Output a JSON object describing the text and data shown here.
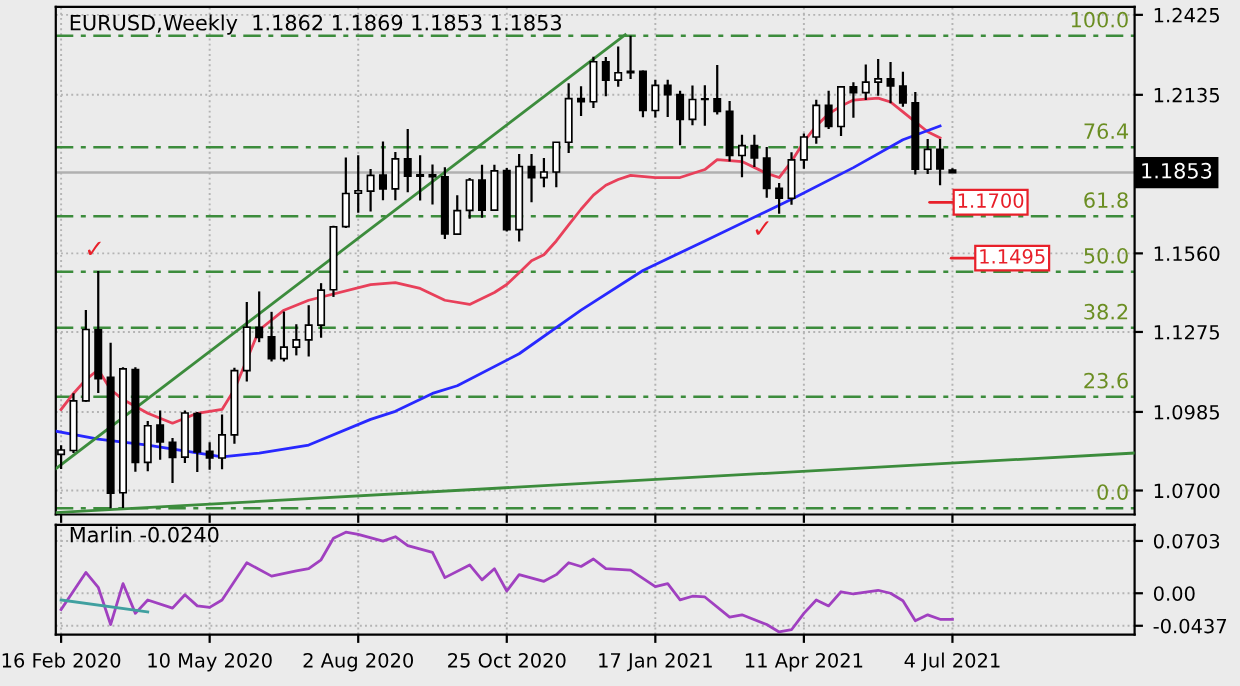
{
  "chart_data": [
    {
      "type": "candlestick",
      "title": "EURUSD,Weekly  1.1862 1.1869 1.1853 1.1853",
      "x": [
        "2020-02-16",
        "2020-02-23",
        "2020-03-01",
        "2020-03-08",
        "2020-03-15",
        "2020-03-22",
        "2020-03-29",
        "2020-04-05",
        "2020-04-12",
        "2020-04-19",
        "2020-04-26",
        "2020-05-03",
        "2020-05-10",
        "2020-05-17",
        "2020-05-24",
        "2020-05-31",
        "2020-06-07",
        "2020-06-14",
        "2020-06-21",
        "2020-06-28",
        "2020-07-05",
        "2020-07-12",
        "2020-07-19",
        "2020-07-26",
        "2020-08-02",
        "2020-08-09",
        "2020-08-16",
        "2020-08-23",
        "2020-08-30",
        "2020-09-06",
        "2020-09-13",
        "2020-09-20",
        "2020-09-27",
        "2020-10-04",
        "2020-10-11",
        "2020-10-18",
        "2020-10-25",
        "2020-11-01",
        "2020-11-08",
        "2020-11-15",
        "2020-11-22",
        "2020-11-29",
        "2020-12-06",
        "2020-12-13",
        "2020-12-20",
        "2020-12-27",
        "2021-01-03",
        "2021-01-10",
        "2021-01-17",
        "2021-01-24",
        "2021-01-31",
        "2021-02-07",
        "2021-02-14",
        "2021-02-21",
        "2021-02-28",
        "2021-03-07",
        "2021-03-14",
        "2021-03-21",
        "2021-03-28",
        "2021-04-04",
        "2021-04-11",
        "2021-04-18",
        "2021-04-25",
        "2021-05-02",
        "2021-05-09",
        "2021-05-16",
        "2021-05-23",
        "2021-05-30",
        "2021-06-06",
        "2021-06-13",
        "2021-06-20",
        "2021-06-27",
        "2021-07-04"
      ],
      "ohlc": [
        [
          1.0831,
          1.0864,
          1.0778,
          1.0847
        ],
        [
          1.0845,
          1.1053,
          1.0836,
          1.1025
        ],
        [
          1.1025,
          1.1355,
          1.1022,
          1.1284
        ],
        [
          1.1283,
          1.1496,
          1.1054,
          1.1106
        ],
        [
          1.111,
          1.1236,
          1.0636,
          1.069
        ],
        [
          1.0692,
          1.1147,
          1.0637,
          1.1141
        ],
        [
          1.1139,
          1.1147,
          1.0768,
          1.0802
        ],
        [
          1.0802,
          1.0952,
          1.077,
          1.0935
        ],
        [
          1.0937,
          1.099,
          1.0812,
          1.0876
        ],
        [
          1.0875,
          1.089,
          1.0727,
          1.082
        ],
        [
          1.0821,
          1.099,
          1.08,
          1.0981
        ],
        [
          1.0979,
          1.0985,
          1.0767,
          1.084
        ],
        [
          1.0842,
          1.0875,
          1.0775,
          1.0818
        ],
        [
          1.0818,
          1.0976,
          1.0777,
          1.0902
        ],
        [
          1.0902,
          1.1145,
          1.087,
          1.1135
        ],
        [
          1.1135,
          1.1384,
          1.1095,
          1.1292
        ],
        [
          1.1292,
          1.1422,
          1.1238,
          1.1255
        ],
        [
          1.1257,
          1.1348,
          1.1168,
          1.1178
        ],
        [
          1.1178,
          1.1349,
          1.1168,
          1.122
        ],
        [
          1.122,
          1.1303,
          1.119,
          1.1246
        ],
        [
          1.1246,
          1.1372,
          1.1186,
          1.13
        ],
        [
          1.13,
          1.1452,
          1.1254,
          1.1427
        ],
        [
          1.1428,
          1.166,
          1.1402,
          1.1656
        ],
        [
          1.1657,
          1.1908,
          1.1652,
          1.1777
        ],
        [
          1.1778,
          1.1916,
          1.1707,
          1.1787
        ],
        [
          1.1786,
          1.1866,
          1.1712,
          1.1843
        ],
        [
          1.1844,
          1.1966,
          1.1753,
          1.1794
        ],
        [
          1.1794,
          1.1928,
          1.1753,
          1.1903
        ],
        [
          1.1903,
          1.2011,
          1.1782,
          1.184
        ],
        [
          1.184,
          1.1916,
          1.1752,
          1.1845
        ],
        [
          1.1845,
          1.1882,
          1.1737,
          1.1838
        ],
        [
          1.1838,
          1.1872,
          1.1612,
          1.1631
        ],
        [
          1.163,
          1.1771,
          1.1627,
          1.1715
        ],
        [
          1.1716,
          1.1833,
          1.1686,
          1.1826
        ],
        [
          1.1826,
          1.1881,
          1.1689,
          1.1717
        ],
        [
          1.1717,
          1.1881,
          1.1717,
          1.1859
        ],
        [
          1.186,
          1.187,
          1.1639,
          1.1646
        ],
        [
          1.1646,
          1.192,
          1.1603,
          1.1875
        ],
        [
          1.1875,
          1.192,
          1.1745,
          1.1835
        ],
        [
          1.1835,
          1.1906,
          1.18,
          1.1855
        ],
        [
          1.1855,
          1.1964,
          1.18,
          1.1963
        ],
        [
          1.1963,
          1.2177,
          1.1924,
          1.2121
        ],
        [
          1.2121,
          1.2166,
          1.2058,
          1.211
        ],
        [
          1.211,
          1.2273,
          1.2087,
          1.2255
        ],
        [
          1.2255,
          1.2272,
          1.213,
          1.2188
        ],
        [
          1.2188,
          1.231,
          1.2164,
          1.2215
        ],
        [
          1.2215,
          1.2349,
          1.2192,
          1.222
        ],
        [
          1.222,
          1.2223,
          1.2054,
          1.2078
        ],
        [
          1.2078,
          1.219,
          1.2053,
          1.2169
        ],
        [
          1.2169,
          1.219,
          1.2055,
          1.2136
        ],
        [
          1.2136,
          1.215,
          1.1952,
          1.2046
        ],
        [
          1.2046,
          1.2169,
          1.2025,
          1.2118
        ],
        [
          1.2118,
          1.217,
          1.2023,
          1.212
        ],
        [
          1.212,
          1.2243,
          1.2064,
          1.2075
        ],
        [
          1.2075,
          1.2113,
          1.1893,
          1.1915
        ],
        [
          1.1915,
          1.199,
          1.1836,
          1.1951
        ],
        [
          1.1951,
          1.199,
          1.1873,
          1.1906
        ],
        [
          1.1906,
          1.1946,
          1.1762,
          1.1796
        ],
        [
          1.1796,
          1.1815,
          1.1704,
          1.176
        ],
        [
          1.176,
          1.1927,
          1.1736,
          1.1899
        ],
        [
          1.1899,
          1.1995,
          1.1867,
          1.1982
        ],
        [
          1.1982,
          1.2117,
          1.1958,
          1.2097
        ],
        [
          1.2097,
          1.215,
          1.2011,
          1.202
        ],
        [
          1.202,
          1.2167,
          1.1986,
          1.2164
        ],
        [
          1.2164,
          1.2181,
          1.2052,
          1.2143
        ],
        [
          1.2143,
          1.2245,
          1.2116,
          1.2181
        ],
        [
          1.2181,
          1.2265,
          1.2132,
          1.2193
        ],
        [
          1.2193,
          1.2254,
          1.2104,
          1.2167
        ],
        [
          1.2167,
          1.2219,
          1.2092,
          1.2106
        ],
        [
          1.2106,
          1.2145,
          1.1846,
          1.1865
        ],
        [
          1.1865,
          1.1975,
          1.1848,
          1.1937
        ],
        [
          1.1937,
          1.1975,
          1.1807,
          1.1866
        ],
        [
          1.1862,
          1.1869,
          1.1853,
          1.1853
        ]
      ],
      "series": [
        {
          "type": "line",
          "color": "#e8405a",
          "x": [
            "2020-02-16",
            "2020-02-23",
            "2020-03-01",
            "2020-03-08",
            "2020-03-15",
            "2020-03-22",
            "2020-04-05",
            "2020-04-19",
            "2020-05-03",
            "2020-05-17",
            "2020-05-24",
            "2020-05-31",
            "2020-06-07",
            "2020-06-21",
            "2020-07-05",
            "2020-08-09",
            "2020-08-23",
            "2020-09-06",
            "2020-09-20",
            "2020-10-04",
            "2020-10-18",
            "2020-10-25",
            "2020-11-01",
            "2020-11-08",
            "2020-11-15",
            "2020-11-22",
            "2020-11-29",
            "2020-12-06",
            "2020-12-13",
            "2020-12-20",
            "2020-12-27",
            "2021-01-03",
            "2021-01-17",
            "2021-01-31",
            "2021-02-14",
            "2021-02-21",
            "2021-03-07",
            "2021-03-21",
            "2021-03-28",
            "2021-04-04",
            "2021-04-11",
            "2021-04-18",
            "2021-04-25",
            "2021-05-02",
            "2021-05-09",
            "2021-05-23",
            "2021-05-30",
            "2021-06-06",
            "2021-06-13",
            "2021-06-20",
            "2021-06-27"
          ],
          "values": [
            1.0994,
            1.1052,
            1.1102,
            1.1138,
            1.1066,
            1.103,
            1.098,
            1.0944,
            1.098,
            1.0994,
            1.1066,
            1.1174,
            1.1282,
            1.1354,
            1.139,
            1.1447,
            1.1454,
            1.1433,
            1.139,
            1.1375,
            1.1418,
            1.1447,
            1.149,
            1.1533,
            1.1555,
            1.1605,
            1.1663,
            1.172,
            1.1771,
            1.1807,
            1.1828,
            1.1843,
            1.1835,
            1.1835,
            1.1864,
            1.19,
            1.1893,
            1.185,
            1.1835,
            1.1893,
            1.1965,
            1.2022,
            1.2066,
            1.2094,
            1.2116,
            1.2123,
            1.2109,
            1.2073,
            1.2037,
            1.2001,
            1.1979
          ]
        },
        {
          "type": "line",
          "color": "#2828ff",
          "x": [
            "2020-02-13",
            "2020-03-08",
            "2020-04-05",
            "2020-05-10",
            "2020-05-17",
            "2020-06-07",
            "2020-07-05",
            "2020-08-09",
            "2020-08-23",
            "2020-09-13",
            "2020-09-27",
            "2020-11-01",
            "2020-12-06",
            "2021-01-10",
            "2021-02-14",
            "2021-03-21",
            "2021-04-04",
            "2021-05-09",
            "2021-06-06",
            "2021-06-27"
          ],
          "values": [
            1.0915,
            1.0886,
            1.0865,
            1.0829,
            1.0822,
            1.0836,
            1.0865,
            1.0958,
            1.0987,
            1.1052,
            1.108,
            1.1196,
            1.1354,
            1.1498,
            1.1605,
            1.1713,
            1.1756,
            1.1871,
            1.1972,
            1.2022
          ]
        },
        {
          "type": "line",
          "color": "#3c8c3c",
          "x": [
            "2020-02-13",
            "2020-12-31"
          ],
          "values": [
            1.0779,
            1.2353
          ]
        },
        {
          "type": "line",
          "color": "#3c8c3c",
          "x": [
            "2020-02-13",
            "2021-10-15"
          ],
          "values": [
            1.062,
            1.0836
          ]
        }
      ],
      "xlim": [
        "2020-02-13",
        "2021-10-15"
      ],
      "ylim": [
        1.0613,
        1.2454
      ],
      "yticks": [
        1.2425,
        1.2135,
        {
          "value": 1.156,
          "label": "1.1560"
        },
        1.1275,
        1.0985,
        {
          "value": 1.07,
          "label": "1.0700"
        }
      ],
      "xticks": [
        {
          "value": "2020-02-16",
          "label": null
        },
        {
          "value": "2020-05-10",
          "label": null
        },
        {
          "value": "2020-08-02",
          "label": null
        },
        {
          "value": "2020-10-25",
          "label": null
        },
        {
          "value": "2021-01-17",
          "label": null
        },
        {
          "value": "2021-04-11",
          "label": null
        },
        {
          "value": "2021-07-04",
          "label": null
        }
      ],
      "tick_labels": "y",
      "grid": true,
      "ref_lines": [
        {
          "axis": "y",
          "value": 1.2349,
          "color": "#3c8c3c",
          "line_style": "dashed"
        },
        {
          "axis": "y",
          "value": 1.1945,
          "color": "#3c8c3c",
          "line_style": "dashed"
        },
        {
          "axis": "y",
          "value": 1.1695,
          "color": "#3c8c3c",
          "line_style": "dashed"
        },
        {
          "axis": "y",
          "value": 1.1493,
          "color": "#3c8c3c",
          "line_style": "dashed"
        },
        {
          "axis": "y",
          "value": 1.129,
          "color": "#3c8c3c",
          "line_style": "dashed"
        },
        {
          "axis": "y",
          "value": 1.104,
          "color": "#3c8c3c",
          "line_style": "dashed"
        },
        {
          "axis": "y",
          "value": 1.0636,
          "color": "#3c8c3c",
          "line_style": "dashed"
        },
        {
          "axis": "y",
          "value": 1.1853,
          "label": "1.1853",
          "color": "#b0b0b0",
          "line_style": "solid"
        }
      ],
      "annotations": [
        "1.1700",
        "1.1495",
        "✓",
        "✓",
        "100.0",
        "76.4",
        "61.8",
        "50.0",
        "38.2",
        "23.6",
        "0.0"
      ]
    },
    {
      "type": "line",
      "title": "Marlin -0.0240",
      "series": [
        {
          "color": "#a040c0",
          "x": [
            "2020-02-16",
            "2020-03-01",
            "2020-03-08",
            "2020-03-15",
            "2020-03-22",
            "2020-03-29",
            "2020-04-05",
            "2020-04-19",
            "2020-04-26",
            "2020-05-03",
            "2020-05-10",
            "2020-05-17",
            "2020-05-31",
            "2020-06-14",
            "2020-06-28",
            "2020-07-05",
            "2020-07-12",
            "2020-07-19",
            "2020-07-26",
            "2020-08-02",
            "2020-08-16",
            "2020-08-23",
            "2020-08-30",
            "2020-09-13",
            "2020-09-20",
            "2020-10-04",
            "2020-10-11",
            "2020-10-18",
            "2020-10-25",
            "2020-11-01",
            "2020-11-15",
            "2020-11-22",
            "2020-11-29",
            "2020-12-06",
            "2020-12-13",
            "2020-12-20",
            "2021-01-03",
            "2021-01-17",
            "2021-01-24",
            "2021-01-31",
            "2021-02-07",
            "2021-02-14",
            "2021-02-28",
            "2021-03-07",
            "2021-03-21",
            "2021-03-28",
            "2021-04-04",
            "2021-04-11",
            "2021-04-18",
            "2021-04-25",
            "2021-05-02",
            "2021-05-09",
            "2021-05-23",
            "2021-05-30",
            "2021-06-06",
            "2021-06-13",
            "2021-06-20",
            "2021-06-27",
            "2021-07-04"
          ],
          "values": [
            -0.022,
            0.028,
            0.008,
            -0.042,
            0.013,
            -0.027,
            -0.009,
            -0.02,
            -0.002,
            -0.017,
            -0.019,
            -0.009,
            0.041,
            0.023,
            0.03,
            0.033,
            0.045,
            0.074,
            0.082,
            0.079,
            0.07,
            0.076,
            0.064,
            0.055,
            0.021,
            0.038,
            0.018,
            0.033,
            0.003,
            0.025,
            0.016,
            0.025,
            0.041,
            0.036,
            0.046,
            0.033,
            0.031,
            0.009,
            0.013,
            -0.009,
            -0.004,
            -0.005,
            -0.032,
            -0.029,
            -0.042,
            -0.052,
            -0.049,
            -0.027,
            -0.009,
            -0.017,
            0.002,
            -0.001,
            0.004,
            0.0,
            -0.01,
            -0.037,
            -0.029,
            -0.035,
            -0.035
          ]
        },
        {
          "color": "#40a0a0",
          "x": [
            "2020-02-16",
            "2020-04-05"
          ],
          "values": [
            -0.009,
            -0.025
          ]
        }
      ],
      "xlim": [
        "2020-02-13",
        "2021-10-15"
      ],
      "ylim": [
        -0.0555,
        0.092
      ],
      "yticks": [
        0.0703,
        {
          "value": 0,
          "label": "0.00"
        },
        -0.0437
      ],
      "xticks": [
        {
          "value": "2020-02-16",
          "label": "16 Feb 2020"
        },
        {
          "value": "2020-05-10",
          "label": "10 May 2020"
        },
        {
          "value": "2020-08-02",
          "label": "2 Aug 2020"
        },
        {
          "value": "2020-10-25",
          "label": "25 Oct 2020"
        },
        {
          "value": "2021-01-17",
          "label": "17 Jan 2021"
        },
        {
          "value": "2021-04-11",
          "label": "11 Apr 2021"
        },
        {
          "value": "2021-07-04",
          "label": "4 Jul 2021"
        }
      ],
      "grid": true
    }
  ]
}
